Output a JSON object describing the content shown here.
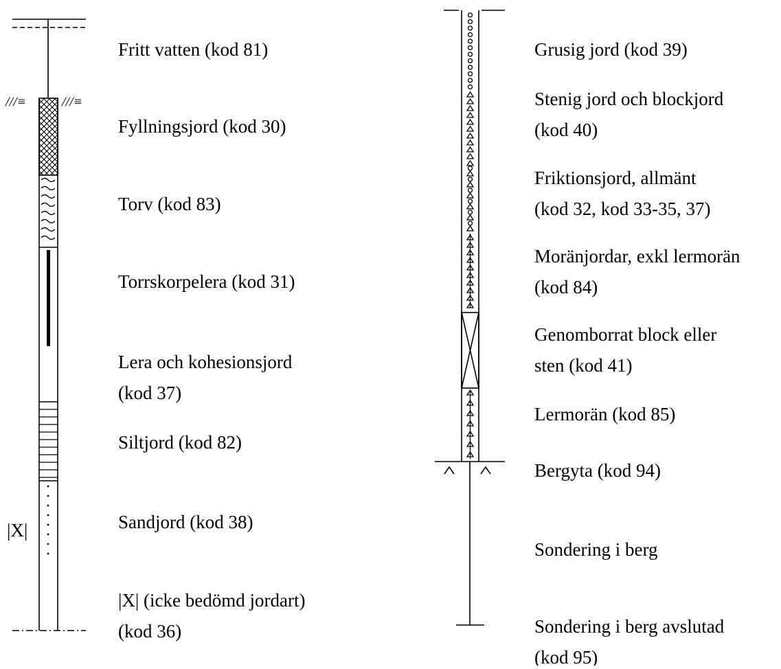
{
  "left": {
    "marker": "|X|",
    "items": [
      {
        "lines": [
          "Fritt vatten (kod 81)"
        ]
      },
      {
        "lines": [
          "Fyllningsjord (kod 30)"
        ]
      },
      {
        "lines": [
          "Torv (kod 83)"
        ]
      },
      {
        "lines": [
          "Torrskorpelera (kod 31)"
        ]
      },
      {
        "lines": [
          "Lera och kohesionsjord",
          "(kod 37)"
        ]
      },
      {
        "lines": [
          "Siltjord (kod 82)"
        ]
      },
      {
        "lines": [
          "Sandjord (kod 38)"
        ]
      },
      {
        "lines": [
          "|X| (icke bedömd jordart)",
          "(kod 36)"
        ]
      }
    ]
  },
  "right": {
    "items": [
      {
        "lines": [
          "Grusig jord (kod 39)"
        ]
      },
      {
        "lines": [
          "Stenig jord och blockjord",
          "(kod 40)"
        ]
      },
      {
        "lines": [
          "Friktionsjord, allmänt",
          "(kod 32, kod 33-35, 37)"
        ]
      },
      {
        "lines": [
          "Moränjordar, exkl lermorän",
          "(kod 84)"
        ]
      },
      {
        "lines": [
          "Genomborrat block eller",
          "sten (kod 41)"
        ]
      },
      {
        "lines": [
          "Lermorän (kod 85)"
        ]
      },
      {
        "lines": [
          "Bergyta (kod 94)"
        ]
      },
      {
        "lines": [
          "Sondering i berg"
        ]
      },
      {
        "lines": [
          "Sondering i berg avslutad",
          "(kod 95)"
        ]
      }
    ]
  }
}
